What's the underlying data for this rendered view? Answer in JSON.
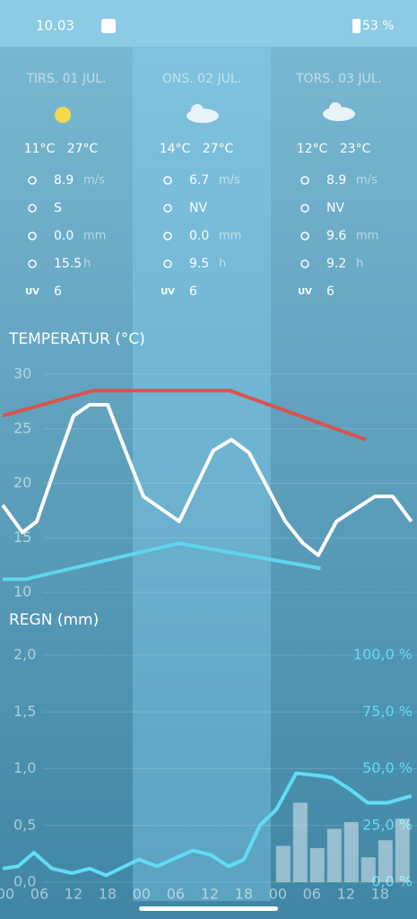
{
  "status_bar": {
    "time": "10.03",
    "battery": "53 %"
  },
  "days": [
    {
      "title": "TIRS. 01 JUL.",
      "min": "11°C",
      "max": "27°C",
      "wind": "8.9",
      "wind_unit": "m/s",
      "direction": "S",
      "rain": "0.0",
      "rain_unit": "mm",
      "sun": "15.5",
      "sun_unit": "h",
      "uv_label": "UV",
      "uv": "6"
    },
    {
      "title": "ONS. 02 JUL.",
      "min": "14°C",
      "max": "27°C",
      "wind": "6.7",
      "wind_unit": "m/s",
      "direction": "NV",
      "rain": "0.0",
      "rain_unit": "mm",
      "sun": "9.5",
      "sun_unit": "h",
      "uv_label": "UV",
      "uv": "6"
    },
    {
      "title": "TORS. 03 JUL.",
      "min": "12°C",
      "max": "23°C",
      "wind": "8.9",
      "wind_unit": "m/s",
      "direction": "NV",
      "rain": "9.6",
      "rain_unit": "mm",
      "sun": "9.2",
      "sun_unit": "h",
      "uv_label": "UV",
      "uv": "6"
    }
  ],
  "chart_data": [
    {
      "type": "line",
      "title": "TEMPERATUR (°C)",
      "xlim": [
        0,
        72
      ],
      "ylim": [
        10,
        32
      ],
      "yticks": [
        10,
        15,
        20,
        25,
        30
      ],
      "grid": true,
      "series": [
        {
          "color": "#d9534f",
          "x": [
            0,
            16,
            40,
            64
          ],
          "values": [
            26.2,
            28.5,
            28.5,
            24
          ]
        },
        {
          "color": "#5fd6ea",
          "x": [
            0,
            4,
            31,
            56
          ],
          "values": [
            11.2,
            11.2,
            14.5,
            12.2
          ]
        },
        {
          "color": "#ffffff",
          "x": [
            0,
            3.5,
            6,
            9.3,
            12.5,
            15.3,
            18.5,
            21.6,
            24.8,
            31.1,
            37.1,
            40.3,
            43.4,
            49.8,
            52.9,
            55.6,
            58.8,
            65.6,
            68.7,
            72
          ],
          "values": [
            18,
            15.5,
            16.5,
            21.5,
            26.2,
            27.2,
            27.2,
            23,
            18.8,
            16.5,
            23,
            24,
            22.8,
            16.5,
            14.5,
            13.4,
            16.5,
            18.8,
            18.8,
            16.5
          ]
        }
      ]
    },
    {
      "type": "bar_line",
      "title": "REGN (mm)",
      "xlim": [
        0,
        72
      ],
      "ylim": [
        0,
        2.1
      ],
      "y2lim": [
        0,
        105
      ],
      "xticks": [
        {
          "value": 0,
          "label": "00"
        },
        {
          "value": 6,
          "label": "06"
        },
        12,
        18,
        {
          "value": 24,
          "label": "00"
        },
        {
          "value": 30,
          "label": "06"
        },
        {
          "value": 36,
          "label": "12"
        },
        {
          "value": 42,
          "label": "18"
        },
        {
          "value": 48,
          "label": "00"
        },
        {
          "value": 54,
          "label": "06"
        },
        {
          "value": 60,
          "label": "12"
        },
        {
          "value": 66,
          "label": "18"
        }
      ],
      "yticks": [
        {
          "value": 0,
          "label": "0,0"
        },
        {
          "value": 0.5,
          "label": "0,5"
        },
        {
          "value": 1,
          "label": "1,0"
        },
        {
          "value": 1.5,
          "label": "1,5"
        },
        {
          "value": 2,
          "label": "2,0"
        }
      ],
      "y2ticks": [
        {
          "value": 0,
          "label": "0,0 %"
        },
        {
          "value": 25,
          "label": "25,0 %"
        },
        {
          "value": 50,
          "label": "50,0 %"
        },
        {
          "value": 75,
          "label": "75,0 %"
        },
        {
          "value": 100,
          "label": "100,0 %"
        }
      ],
      "grid": true,
      "series": [
        {
          "type": "bar",
          "color": "rgba(255,255,255,0.45)",
          "x": [
            48,
            51,
            54,
            57,
            60,
            63,
            66,
            69
          ],
          "values": [
            0.32,
            0.7,
            0.3,
            0.47,
            0.53,
            0.22,
            0.37,
            0.56
          ]
        },
        {
          "type": "line",
          "axis": "y2",
          "color": "#62dcf5",
          "x": [
            0,
            2.7,
            5.5,
            8.7,
            12.2,
            15.3,
            18.2,
            24,
            27.2,
            33.5,
            36.7,
            39.8,
            42.5,
            45.3,
            48.2,
            51.7,
            55.6,
            58,
            61.1,
            64.3,
            67.8,
            72
          ],
          "values": [
            6,
            7,
            13,
            6,
            4,
            6,
            3,
            10,
            7,
            14,
            12,
            7,
            10,
            25,
            32,
            48,
            47,
            46,
            41,
            35,
            35,
            38
          ]
        }
      ]
    }
  ]
}
